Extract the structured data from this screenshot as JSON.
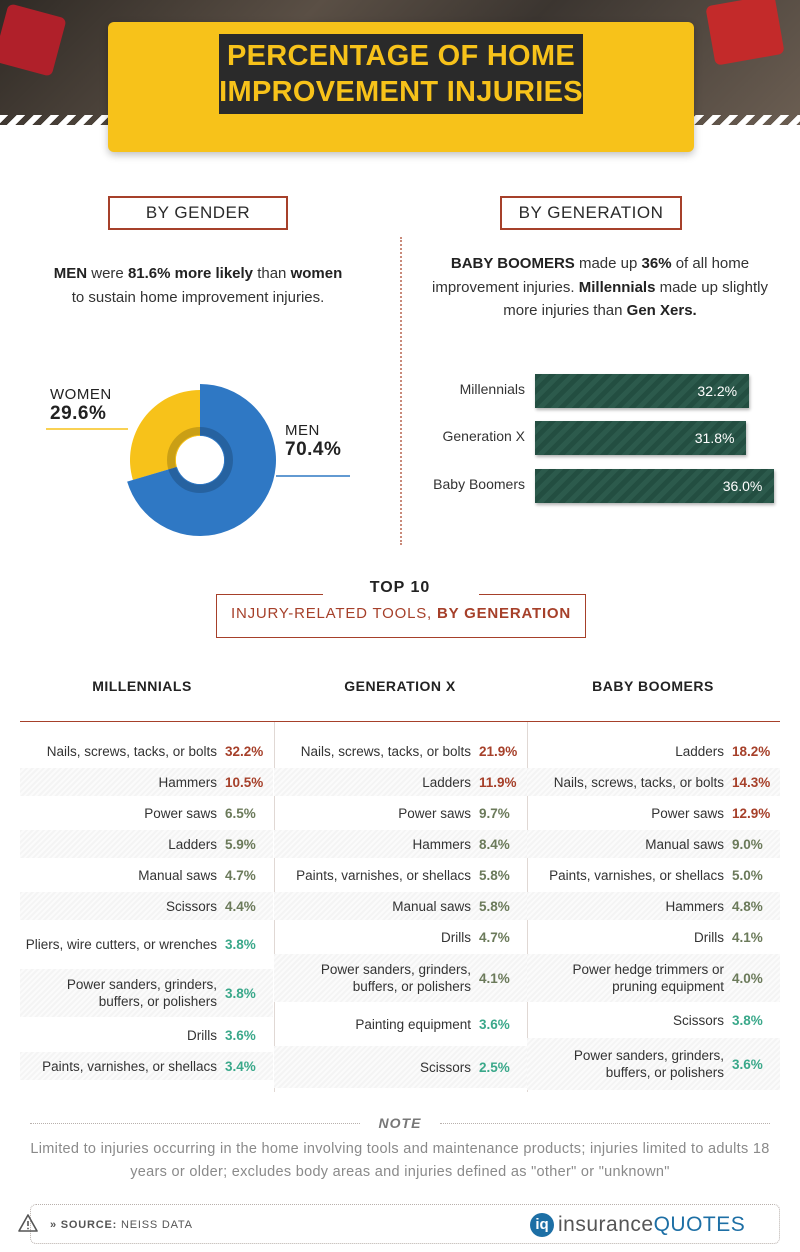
{
  "header": {
    "title_line1": "PERCENTAGE OF HOME",
    "title_line2": "IMPROVEMENT INJURIES"
  },
  "gender": {
    "section_label": "BY GENDER",
    "text": {
      "a": "MEN",
      "b": " were ",
      "c": "81.6% more likely",
      "d": " than ",
      "e": "women",
      "f": " to sustain home improvement injuries."
    },
    "labels": {
      "women_name": "WOMEN",
      "women_value": "29.6%",
      "men_name": "MEN",
      "men_value": "70.4%"
    }
  },
  "generation": {
    "section_label": "BY GENERATION",
    "text": {
      "a": "BABY BOOMERS",
      "b": " made up ",
      "c": "36%",
      "d": " of all home improvement injuries. ",
      "e": "Millennials",
      "f": " made up slightly more injuries than ",
      "g": "Gen Xers."
    }
  },
  "chart_data": [
    {
      "type": "pie",
      "categories": [
        "WOMEN",
        "MEN"
      ],
      "values": [
        29.6,
        70.4
      ],
      "colors": [
        "#f7c21a",
        "#2f78c4"
      ],
      "title": "BY GENDER"
    },
    {
      "type": "bar",
      "orientation": "horizontal",
      "categories": [
        "Millennials",
        "Generation X",
        "Baby Boomers"
      ],
      "values": [
        32.2,
        31.8,
        36.0
      ],
      "value_labels": [
        "32.2%",
        "31.8%",
        "36.0%"
      ],
      "title": "BY GENERATION",
      "color": "#234e41"
    },
    {
      "type": "table",
      "title": "TOP 10",
      "subtitle_a": "INJURY-RELATED TOOLS, ",
      "subtitle_b": "BY GENERATION",
      "columns": [
        {
          "name": "MILLENNIALS",
          "rows": [
            {
              "tool": "Nails, screws, tacks, or bolts",
              "pct": "32.2%",
              "value": 32.2
            },
            {
              "tool": "Hammers",
              "pct": "10.5%",
              "value": 10.5
            },
            {
              "tool": "Power saws",
              "pct": "6.5%",
              "value": 6.5
            },
            {
              "tool": "Ladders",
              "pct": "5.9%",
              "value": 5.9
            },
            {
              "tool": "Manual saws",
              "pct": "4.7%",
              "value": 4.7
            },
            {
              "tool": "Scissors",
              "pct": "4.4%",
              "value": 4.4
            },
            {
              "tool": "Pliers, wire cutters, or wrenches",
              "pct": "3.8%",
              "value": 3.8
            },
            {
              "tool": "Power sanders, grinders, buffers, or polishers",
              "pct": "3.8%",
              "value": 3.8
            },
            {
              "tool": "Drills",
              "pct": "3.6%",
              "value": 3.6
            },
            {
              "tool": "Paints, varnishes, or shellacs",
              "pct": "3.4%",
              "value": 3.4
            }
          ]
        },
        {
          "name": "GENERATION X",
          "rows": [
            {
              "tool": "Nails, screws, tacks, or bolts",
              "pct": "21.9%",
              "value": 21.9
            },
            {
              "tool": "Ladders",
              "pct": "11.9%",
              "value": 11.9
            },
            {
              "tool": "Power saws",
              "pct": "9.7%",
              "value": 9.7
            },
            {
              "tool": "Hammers",
              "pct": "8.4%",
              "value": 8.4
            },
            {
              "tool": "Paints, varnishes, or shellacs",
              "pct": "5.8%",
              "value": 5.8
            },
            {
              "tool": "Manual saws",
              "pct": "5.8%",
              "value": 5.8
            },
            {
              "tool": "Drills",
              "pct": "4.7%",
              "value": 4.7
            },
            {
              "tool": "Power sanders, grinders, buffers, or polishers",
              "pct": "4.1%",
              "value": 4.1
            },
            {
              "tool": "Painting equipment",
              "pct": "3.6%",
              "value": 3.6
            },
            {
              "tool": "Scissors",
              "pct": "2.5%",
              "value": 2.5
            }
          ]
        },
        {
          "name": "BABY BOOMERS",
          "rows": [
            {
              "tool": "Ladders",
              "pct": "18.2%",
              "value": 18.2
            },
            {
              "tool": "Nails, screws, tacks, or bolts",
              "pct": "14.3%",
              "value": 14.3
            },
            {
              "tool": "Power saws",
              "pct": "12.9%",
              "value": 12.9
            },
            {
              "tool": "Manual saws",
              "pct": "9.0%",
              "value": 9.0
            },
            {
              "tool": "Paints, varnishes, or shellacs",
              "pct": "5.0%",
              "value": 5.0
            },
            {
              "tool": "Hammers",
              "pct": "4.8%",
              "value": 4.8
            },
            {
              "tool": "Drills",
              "pct": "4.1%",
              "value": 4.1
            },
            {
              "tool": "Power hedge trimmers or pruning equipment",
              "pct": "4.0%",
              "value": 4.0
            },
            {
              "tool": "Scissors",
              "pct": "3.8%",
              "value": 3.8
            },
            {
              "tool": "Power sanders, grinders, buffers, or polishers",
              "pct": "3.6%",
              "value": 3.6
            }
          ]
        }
      ]
    }
  ],
  "note": {
    "title": "NOTE",
    "text": "Limited to injuries occurring in the home involving tools and maintenance products; injuries limited to adults 18 years or older; excludes body areas and injuries defined as \"other\" or \"unknown\""
  },
  "footer": {
    "source_prefix": "» SOURCE:",
    "source_text": " NEISS DATA",
    "logo_mark": "iq",
    "logo_word1": "insurance",
    "logo_word2": "QUOTES"
  },
  "colors": {
    "accent": "#a6402a",
    "yellow": "#f7c21a",
    "blue": "#2f78c4",
    "green": "#234e41",
    "pct_high": "#a6402a",
    "pct_mid": "#6b7a5a",
    "pct_low": "#3aa88a"
  }
}
